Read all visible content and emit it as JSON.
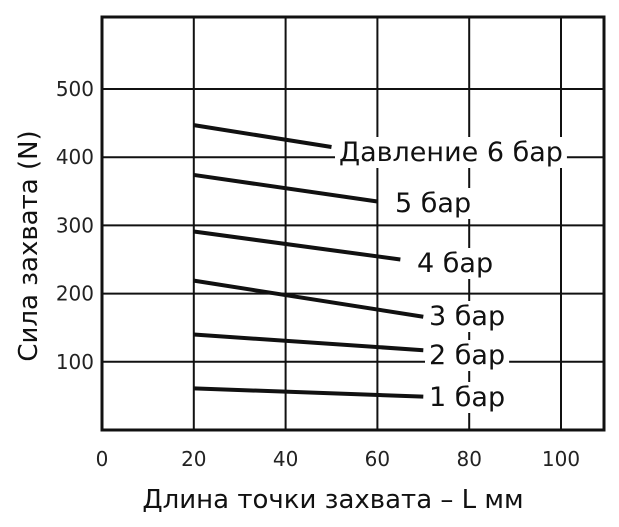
{
  "chart_data": {
    "type": "line",
    "xlabel": "Длина точки захвата – L мм",
    "ylabel": "Сила захвата (N)",
    "xlim": [
      0,
      110
    ],
    "ylim": [
      0,
      500
    ],
    "x_ticks": [
      0,
      20,
      40,
      60,
      80,
      100
    ],
    "y_ticks": [
      100,
      200,
      300,
      400,
      500
    ],
    "grid": true,
    "series": [
      {
        "name": "Давление 6 бар",
        "x": [
          20,
          50
        ],
        "y": [
          447,
          415
        ]
      },
      {
        "name": "5 бар",
        "x": [
          20,
          60
        ],
        "y": [
          374,
          335
        ]
      },
      {
        "name": "4 бар",
        "x": [
          20,
          65
        ],
        "y": [
          291,
          250
        ]
      },
      {
        "name": "3 бар",
        "x": [
          20,
          70
        ],
        "y": [
          219,
          166
        ]
      },
      {
        "name": "2 бар",
        "x": [
          20,
          70
        ],
        "y": [
          140,
          117
        ]
      },
      {
        "name": "1 бар",
        "x": [
          20,
          70
        ],
        "y": [
          61,
          49
        ]
      }
    ]
  }
}
